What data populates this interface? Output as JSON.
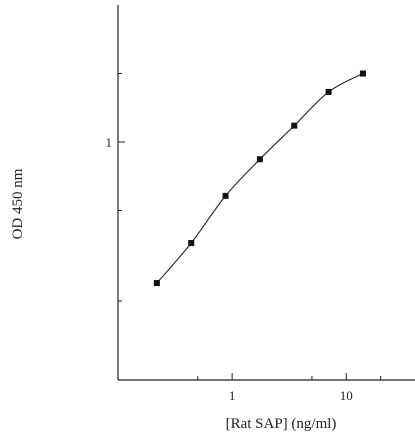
{
  "chart_data": {
    "type": "scatter",
    "xlabel": "[Rat SAP] (ng/ml)",
    "ylabel": "OD 450 nm",
    "x_scale": "log",
    "y_scale": "log",
    "xlim": [
      0.1,
      40
    ],
    "ylim": [
      0.09,
      4.0
    ],
    "x_tick_labels": [
      {
        "value": 1,
        "label": "1"
      },
      {
        "value": 10,
        "label": "10"
      }
    ],
    "y_tick_labels": [
      {
        "value": 1,
        "label": "1"
      }
    ],
    "x_minor_ticks": [
      0.5,
      5,
      20
    ],
    "y_minor_ticks": [
      0.2,
      0.5,
      2
    ],
    "grid": false,
    "series": [
      {
        "x": [
          0.219,
          0.438,
          0.875,
          1.75,
          3.5,
          7,
          14
        ],
        "y": [
          0.24,
          0.36,
          0.58,
          0.84,
          1.18,
          1.66,
          2.0
        ],
        "marker": "square",
        "line": "smooth"
      }
    ]
  }
}
